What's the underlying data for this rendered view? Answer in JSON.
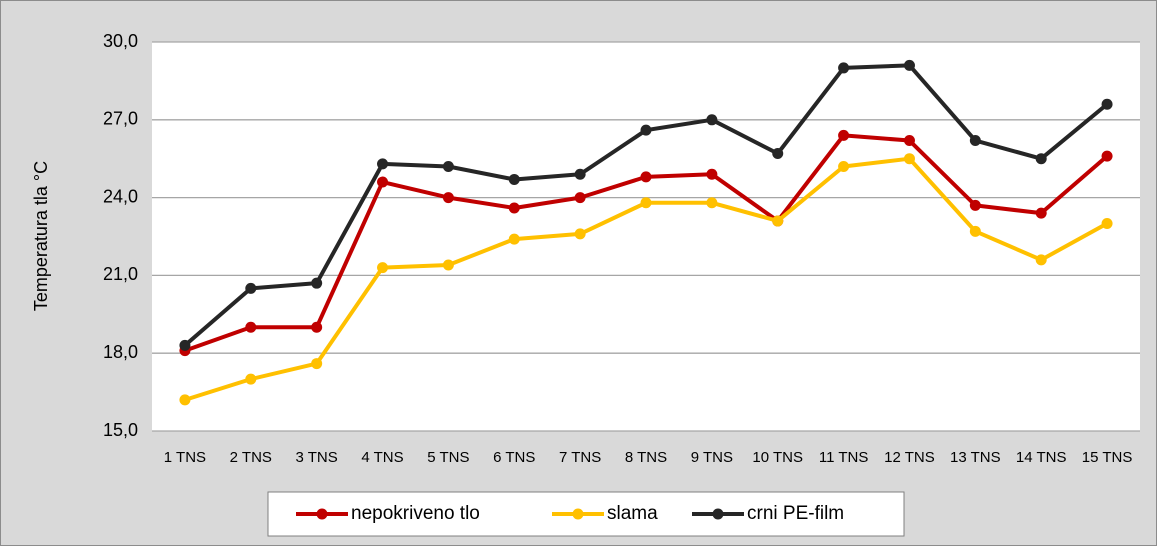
{
  "chart_data": {
    "type": "line",
    "y_label": "Temperatura  tla °C",
    "categories": [
      "1 TNS",
      "2 TNS",
      "3 TNS",
      "4 TNS",
      "5 TNS",
      "6 TNS",
      "7 TNS",
      "8 TNS",
      "9 TNS",
      "10 TNS",
      "11 TNS",
      "12 TNS",
      "13 TNS",
      "14 TNS",
      "15 TNS"
    ],
    "series": [
      {
        "name": "nepokriveno tlo",
        "color": "#c00000",
        "values": [
          18.1,
          19.0,
          19.0,
          24.6,
          24.0,
          23.6,
          24.0,
          24.8,
          24.9,
          23.1,
          26.4,
          26.2,
          23.7,
          23.4,
          25.6
        ]
      },
      {
        "name": "slama",
        "color": "#ffc000",
        "values": [
          16.2,
          17.0,
          17.6,
          21.3,
          21.4,
          22.4,
          22.6,
          23.8,
          23.8,
          23.1,
          25.2,
          25.5,
          22.7,
          21.6,
          23.0
        ]
      },
      {
        "name": "crni PE-film",
        "color": "#262626",
        "values": [
          18.3,
          20.5,
          20.7,
          25.3,
          25.2,
          24.7,
          24.9,
          26.6,
          27.0,
          25.7,
          29.0,
          29.1,
          26.2,
          25.5,
          27.6
        ]
      }
    ],
    "ylim": [
      15,
      30
    ],
    "yticks": [
      {
        "value": 15,
        "label": "15,0"
      },
      {
        "value": 18,
        "label": "18,0"
      },
      {
        "value": 21,
        "label": "21,0"
      },
      {
        "value": 24,
        "label": "24,0"
      },
      {
        "value": 27,
        "label": "27,0"
      },
      {
        "value": 30,
        "label": "30,0"
      }
    ],
    "grid": true,
    "legend": "bottom"
  }
}
